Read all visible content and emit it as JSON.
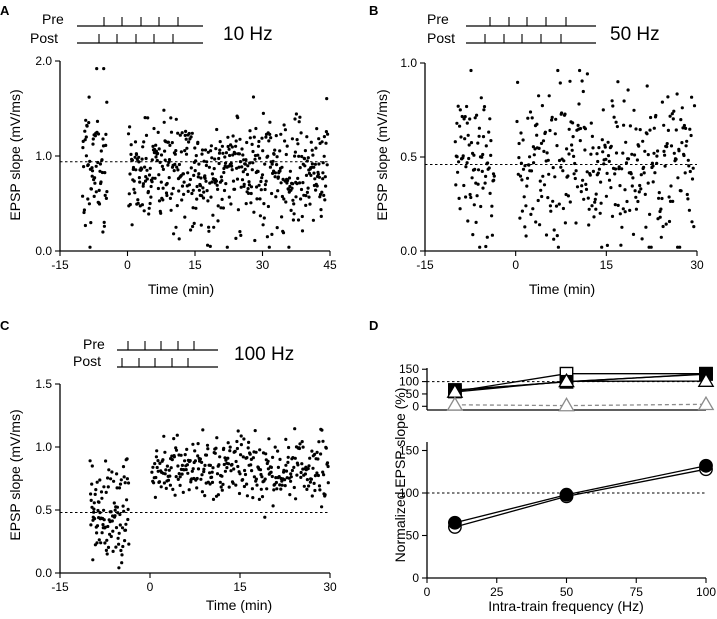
{
  "chart_data": [
    {
      "panel": "A",
      "type": "scatter",
      "frequency_label": "10 Hz",
      "protocol_labels": [
        "Pre",
        "Post"
      ],
      "xlabel": "Time (min)",
      "ylabel": "EPSP slope (mV/ms)",
      "xlim": [
        -15,
        45
      ],
      "ylim": [
        0,
        2
      ],
      "xticks": [
        -15,
        0,
        15,
        30,
        45
      ],
      "yticks": [
        {
          "v": 0,
          "label": "0.0"
        },
        {
          "v": 1,
          "label": "1.0"
        },
        {
          "v": 2,
          "label": "2.0"
        }
      ],
      "baseline": 0.94,
      "clusters": [
        {
          "x0": -10,
          "x1": -4.5,
          "n": 70,
          "mean": 0.92,
          "sd": 0.36,
          "seed": 11
        },
        {
          "x0": 0.2,
          "x1": 44.5,
          "n": 520,
          "mean": 0.82,
          "sd": 0.3,
          "seed": 12
        }
      ]
    },
    {
      "panel": "B",
      "type": "scatter",
      "frequency_label": "50 Hz",
      "protocol_labels": [
        "Pre",
        "Post"
      ],
      "xlabel": "Time (min)",
      "ylabel": "EPSP slope (mV/ms)",
      "xlim": [
        -15,
        30
      ],
      "ylim": [
        0,
        1
      ],
      "xticks": [
        -15,
        0,
        15,
        30
      ],
      "yticks": [
        {
          "v": 0,
          "label": "0.0"
        },
        {
          "v": 0.5,
          "label": "0.5"
        },
        {
          "v": 1,
          "label": "1.0"
        }
      ],
      "baseline": 0.46,
      "clusters": [
        {
          "x0": -10,
          "x1": -3.5,
          "n": 85,
          "mean": 0.47,
          "sd": 0.19,
          "seed": 21
        },
        {
          "x0": 0.2,
          "x1": 29.6,
          "n": 330,
          "mean": 0.45,
          "sd": 0.2,
          "seed": 22
        }
      ]
    },
    {
      "panel": "C",
      "type": "scatter",
      "frequency_label": "100 Hz",
      "protocol_labels": [
        "Pre",
        "Post"
      ],
      "xlabel": "Time (min)",
      "ylabel": "EPSP slope (mV/ms)",
      "xlim": [
        -15,
        30
      ],
      "ylim": [
        0,
        1.5
      ],
      "xticks": [
        -15,
        0,
        15,
        30
      ],
      "yticks": [
        {
          "v": 0,
          "label": "0.0"
        },
        {
          "v": 0.5,
          "label": "0.5"
        },
        {
          "v": 1,
          "label": "1.0"
        },
        {
          "v": 1.5,
          "label": "1.5"
        }
      ],
      "baseline": 0.48,
      "clusters": [
        {
          "x0": -10,
          "x1": -3.5,
          "n": 110,
          "mean": 0.47,
          "sd": 0.2,
          "seed": 31
        },
        {
          "x0": 0.3,
          "x1": 29.8,
          "n": 330,
          "mean": 0.83,
          "sd": 0.13,
          "seed": 32
        }
      ]
    },
    {
      "panel": "D",
      "type": "line",
      "xlabel": "Intra-train frequency (Hz)",
      "ylabel": "Normalized EPSP slope (%)",
      "xlim": [
        0,
        100
      ],
      "xticks": [
        0,
        25,
        50,
        75,
        100
      ],
      "subplots": [
        {
          "ylim": [
            -15,
            155
          ],
          "yticks": [
            0,
            50,
            100,
            150
          ],
          "reference": 100,
          "series": [
            {
              "name": "open square",
              "marker": "square-open",
              "color": "#000000",
              "dashed": false,
              "x": [
                10,
                50,
                100
              ],
              "y": [
                60,
                132,
                132
              ]
            },
            {
              "name": "filled square",
              "marker": "square-filled",
              "color": "#000000",
              "dashed": false,
              "x": [
                10,
                50,
                100
              ],
              "y": [
                66,
                99,
                131
              ]
            },
            {
              "name": "filled circle",
              "marker": "circle-filled",
              "color": "#000000",
              "dashed": false,
              "x": [
                10,
                50,
                100
              ],
              "y": [
                64,
                100,
                130
              ]
            },
            {
              "name": "open triangle",
              "marker": "triangle-open",
              "color": "#000000",
              "dashed": false,
              "x": [
                10,
                50,
                100
              ],
              "y": [
                58,
                101,
                102
              ]
            },
            {
              "name": "gray open triangle",
              "marker": "triangle-open",
              "color": "#8c8c8c",
              "dashed": true,
              "x": [
                10,
                50,
                100
              ],
              "y": [
                6,
                3,
                8
              ]
            }
          ]
        },
        {
          "ylim": [
            0,
            160
          ],
          "yticks": [
            0,
            50,
            100,
            150
          ],
          "reference": 100,
          "series": [
            {
              "name": "open circle",
              "marker": "circle-open",
              "color": "#000000",
              "dashed": false,
              "x": [
                10,
                50,
                100
              ],
              "y": [
                60,
                96,
                128
              ]
            },
            {
              "name": "filled circle",
              "marker": "circle-filled",
              "color": "#000000",
              "dashed": false,
              "x": [
                10,
                50,
                100
              ],
              "y": [
                65,
                98,
                132
              ]
            }
          ]
        }
      ]
    }
  ]
}
